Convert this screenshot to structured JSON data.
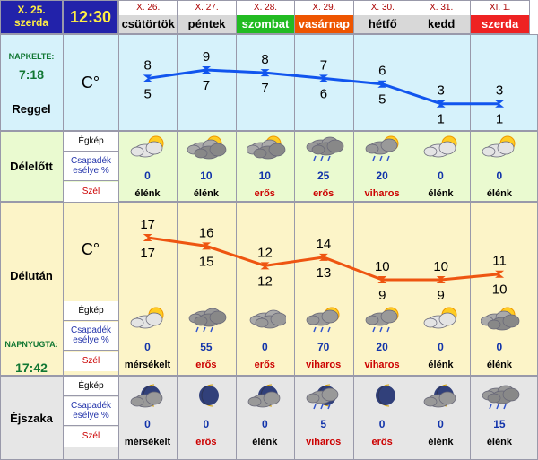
{
  "header": {
    "date": "X. 25.",
    "weekday": "szerda",
    "time": "12:30"
  },
  "days": [
    {
      "date": "X. 26.",
      "name": "csütörtök",
      "color": "#d8d8d8"
    },
    {
      "date": "X. 27.",
      "name": "péntek",
      "color": "#d8d8d8"
    },
    {
      "date": "X. 28.",
      "name": "szombat",
      "color": "#22bb22"
    },
    {
      "date": "X. 29.",
      "name": "vasárnap",
      "color": "#ee5500"
    },
    {
      "date": "X. 30.",
      "name": "hétfő",
      "color": "#d8d8d8"
    },
    {
      "date": "X. 31.",
      "name": "kedd",
      "color": "#d8d8d8"
    },
    {
      "date": "XI. 1.",
      "name": "szerda",
      "color": "#ee2222"
    }
  ],
  "sunrise": {
    "label": "NAPKELTE:",
    "time": "7:18"
  },
  "sunset": {
    "label": "NAPNYUGTA:",
    "time": "17:42"
  },
  "sections": {
    "morning": "Reggel",
    "forenoon": "Délelőtt",
    "afternoon": "Délután",
    "night": "Éjszaka"
  },
  "unit": "C°",
  "row_labels": {
    "sky": "Égkép",
    "precip": "Csapadék esélye %",
    "wind": "Szél"
  },
  "morning_temps": {
    "max": [
      8,
      9,
      8,
      7,
      6,
      3,
      3
    ],
    "min": [
      5,
      7,
      7,
      6,
      5,
      1,
      1
    ]
  },
  "afternoon_temps": {
    "max": [
      17,
      16,
      12,
      14,
      10,
      10,
      11
    ],
    "min": [
      17,
      15,
      12,
      13,
      9,
      9,
      10
    ]
  },
  "forenoon": {
    "icons": [
      "partly-cloudy-icon",
      "cloudy-sun-icon",
      "cloudy-sun-icon",
      "rain-cloud-icon",
      "rain-sun-icon",
      "partly-cloudy-icon",
      "partly-cloudy-icon"
    ],
    "precip": [
      "0",
      "10",
      "10",
      "25",
      "20",
      "0",
      "0"
    ],
    "wind": [
      "élénk",
      "élénk",
      "erős",
      "erős",
      "viharos",
      "élénk",
      "élénk"
    ],
    "wind_color": [
      "#000",
      "#000",
      "#c00",
      "#c00",
      "#c00",
      "#000",
      "#000"
    ]
  },
  "afternoon": {
    "icons": [
      "partly-cloudy-icon",
      "rain-cloud-icon",
      "cloud-icon",
      "rain-sun-icon",
      "rain-sun-icon",
      "partly-cloudy-icon",
      "cloudy-sun-icon"
    ],
    "precip": [
      "0",
      "55",
      "0",
      "70",
      "20",
      "0",
      "0"
    ],
    "wind": [
      "mérsékelt",
      "erős",
      "erős",
      "viharos",
      "viharos",
      "élénk",
      "élénk"
    ],
    "wind_color": [
      "#000",
      "#c00",
      "#c00",
      "#c00",
      "#c00",
      "#000",
      "#000"
    ]
  },
  "night": {
    "icons": [
      "moon-cloud-icon",
      "moon-icon",
      "moon-cloud-icon",
      "moon-rain-icon",
      "moon-icon",
      "moon-cloud-icon",
      "rain-cloud-icon"
    ],
    "precip": [
      "0",
      "0",
      "0",
      "5",
      "0",
      "0",
      "15"
    ],
    "wind": [
      "mérsékelt",
      "erős",
      "élénk",
      "viharos",
      "erős",
      "élénk",
      "élénk"
    ],
    "wind_color": [
      "#000",
      "#c00",
      "#000",
      "#c00",
      "#c00",
      "#000",
      "#000"
    ]
  },
  "colors": {
    "morning_line": "#1155ee",
    "afternoon_line": "#ee5511",
    "morning_bg": "#d6f2fb",
    "forenoon_bg": "#eafad0",
    "afternoon_bg": "#fcf4c8",
    "night_bg": "#e6e6e6",
    "header_bg": "#2222aa"
  }
}
